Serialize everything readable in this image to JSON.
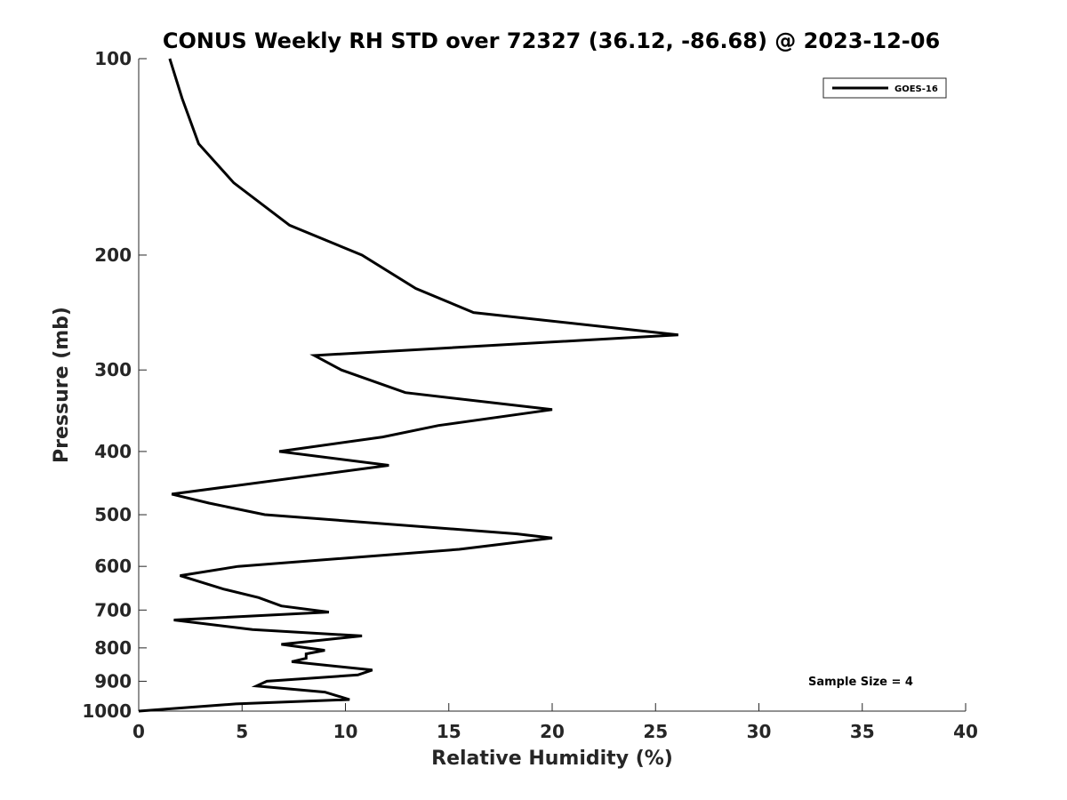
{
  "chart_data": {
    "type": "line",
    "title": "CONUS Weekly RH STD over 72327 (36.12, -86.68) @ 2023-12-06",
    "xlabel": "Relative Humidity (%)",
    "ylabel": "Pressure (mb)",
    "xlim": [
      0,
      40
    ],
    "ylim": [
      100,
      1000
    ],
    "y_scale": "log",
    "y_reversed": true,
    "xticks": [
      0,
      5,
      10,
      15,
      20,
      25,
      30,
      35,
      40
    ],
    "yticks": [
      100,
      200,
      300,
      400,
      500,
      600,
      700,
      800,
      900,
      1000
    ],
    "legend_position": "top-right",
    "annotation": "Sample Size = 4",
    "series": [
      {
        "name": "GOES-16",
        "color": "#000000",
        "points": [
          [
            1.5,
            100
          ],
          [
            2.1,
            115
          ],
          [
            2.9,
            135
          ],
          [
            4.6,
            155
          ],
          [
            7.3,
            180
          ],
          [
            10.8,
            200
          ],
          [
            13.4,
            225
          ],
          [
            16.2,
            245
          ],
          [
            26.1,
            265
          ],
          [
            8.5,
            285
          ],
          [
            9.8,
            300
          ],
          [
            12.9,
            325
          ],
          [
            20.0,
            345
          ],
          [
            14.5,
            365
          ],
          [
            11.8,
            380
          ],
          [
            6.8,
            400
          ],
          [
            12.1,
            420
          ],
          [
            1.6,
            465
          ],
          [
            3.4,
            480
          ],
          [
            6.1,
            500
          ],
          [
            18.3,
            535
          ],
          [
            20.0,
            543
          ],
          [
            15.5,
            565
          ],
          [
            4.8,
            600
          ],
          [
            2.0,
            620
          ],
          [
            4.1,
            650
          ],
          [
            5.8,
            670
          ],
          [
            6.9,
            690
          ],
          [
            9.2,
            705
          ],
          [
            1.7,
            725
          ],
          [
            5.5,
            750
          ],
          [
            10.8,
            767
          ],
          [
            6.9,
            790
          ],
          [
            9.0,
            807
          ],
          [
            8.1,
            817
          ],
          [
            8.1,
            830
          ],
          [
            7.4,
            840
          ],
          [
            11.3,
            865
          ],
          [
            10.6,
            880
          ],
          [
            6.2,
            900
          ],
          [
            5.7,
            915
          ],
          [
            9.0,
            935
          ],
          [
            10.2,
            960
          ],
          [
            4.7,
            975
          ],
          [
            0,
            1000
          ]
        ]
      }
    ]
  }
}
